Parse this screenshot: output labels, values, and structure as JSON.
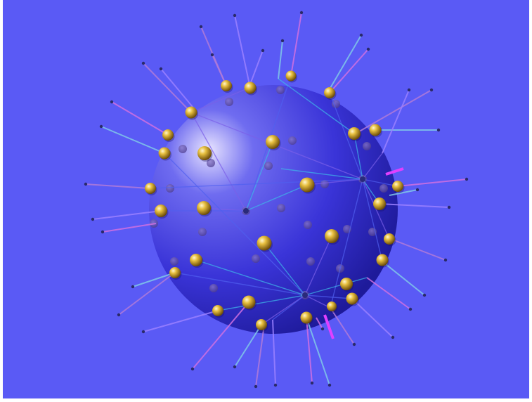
{
  "scene": {
    "background_color": "#5a5af5",
    "sphere": {
      "highlight_color": "#e8e4ff",
      "mid_color": "#6f6cf0",
      "base_color": "#3a34d8",
      "shadow_color": "#1e1a9a"
    },
    "surface_node_color": "#e8c040",
    "surface_node_dark": "#6a4a08",
    "back_node_color": "#4a3a8a",
    "spike_colors": [
      "#b07ad8",
      "#9a80ff",
      "#d070e0",
      "#80c8e8"
    ],
    "net_line_colors": [
      "#5060f0",
      "#3fb8e8",
      "#7a60e8"
    ],
    "tip_marker_color": "#2a2a6a",
    "accent_stub_color": "#e040ff"
  }
}
